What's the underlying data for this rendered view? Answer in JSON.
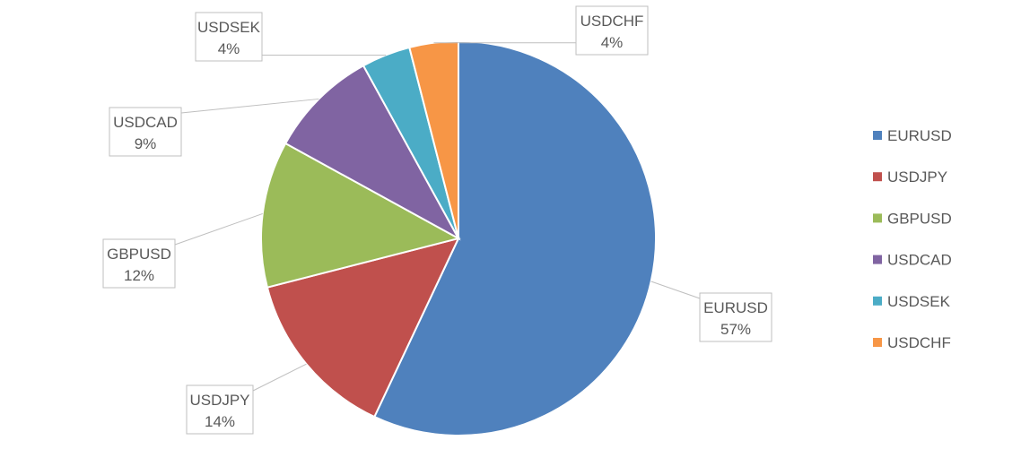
{
  "chart_data": {
    "type": "pie",
    "title": "",
    "legend_position": "right",
    "categories": [
      "EURUSD",
      "USDJPY",
      "GBPUSD",
      "USDCAD",
      "USDSEK",
      "USDCHF"
    ],
    "values": [
      57,
      14,
      12,
      9,
      4,
      4
    ],
    "value_labels": [
      "57%",
      "14%",
      "12%",
      "9%",
      "4%",
      "4%"
    ],
    "colors": [
      "#4F81BD",
      "#C0504D",
      "#9BBB59",
      "#8064A2",
      "#4BACC6",
      "#F79646"
    ],
    "start_angle_deg": 0,
    "direction": "clockwise"
  }
}
